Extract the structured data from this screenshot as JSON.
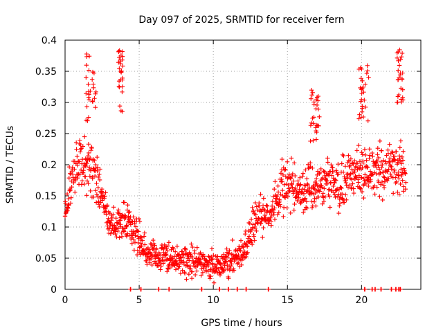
{
  "chart_data": {
    "type": "scatter",
    "title": "Day 097 of 2025, SRMTID for receiver fern",
    "xlabel": "GPS time / hours",
    "ylabel": "SRMTID / TECUs",
    "xlim": [
      0,
      24
    ],
    "ylim": [
      0,
      0.4
    ],
    "xticks": [
      0,
      5,
      10,
      15,
      20
    ],
    "xtick_labels": [
      "0",
      "5",
      "10",
      "15",
      "20"
    ],
    "yticks": [
      0,
      0.05,
      0.1,
      0.15,
      0.2,
      0.25,
      0.3,
      0.35,
      0.4
    ],
    "ytick_labels": [
      "0",
      "0.05",
      "0.1",
      "0.15",
      "0.2",
      "0.25",
      "0.3",
      "0.35",
      "0.4"
    ],
    "grid": true,
    "marker": "+",
    "color": "#ff0000",
    "series": [
      {
        "name": "SRMTID",
        "trend": {
          "x": [
            0,
            0.5,
            1,
            1.5,
            2,
            2.5,
            3,
            3.5,
            4,
            4.5,
            5,
            5.5,
            6,
            6.5,
            7,
            7.5,
            8,
            8.5,
            9,
            9.5,
            10,
            10.5,
            11,
            11.5,
            12,
            12.5,
            13,
            13.5,
            14,
            14.5,
            15,
            15.5,
            16,
            16.5,
            17,
            17.5,
            18,
            18.5,
            19,
            19.5,
            20,
            20.5,
            21,
            21.5,
            22,
            22.5,
            23
          ],
          "y": [
            0.13,
            0.18,
            0.2,
            0.2,
            0.19,
            0.15,
            0.11,
            0.1,
            0.11,
            0.1,
            0.08,
            0.06,
            0.055,
            0.055,
            0.05,
            0.045,
            0.045,
            0.045,
            0.045,
            0.04,
            0.04,
            0.04,
            0.045,
            0.05,
            0.06,
            0.09,
            0.12,
            0.11,
            0.12,
            0.16,
            0.17,
            0.16,
            0.16,
            0.17,
            0.16,
            0.17,
            0.17,
            0.17,
            0.18,
            0.19,
            0.19,
            0.19,
            0.19,
            0.19,
            0.2,
            0.19,
            0.19
          ]
        },
        "spread": 0.04,
        "bursts": [
          {
            "x_from": 1.4,
            "x_to": 2.1,
            "y_from": 0.27,
            "y_to": 0.38
          },
          {
            "x_from": 3.6,
            "x_to": 3.9,
            "y_from": 0.27,
            "y_to": 0.39
          },
          {
            "x_from": 16.5,
            "x_to": 17.2,
            "y_from": 0.22,
            "y_to": 0.32
          },
          {
            "x_from": 19.8,
            "x_to": 20.5,
            "y_from": 0.27,
            "y_to": 0.36
          },
          {
            "x_from": 22.3,
            "x_to": 22.8,
            "y_from": 0.3,
            "y_to": 0.39
          }
        ],
        "zero_points_x": [
          4.4,
          5.1,
          6.3,
          7.0,
          9.2,
          10.4,
          11.0,
          11.6,
          12.2,
          13.7,
          20.2,
          20.7,
          20.9,
          21.3,
          22.0,
          22.3,
          22.5,
          22.6
        ]
      }
    ]
  }
}
